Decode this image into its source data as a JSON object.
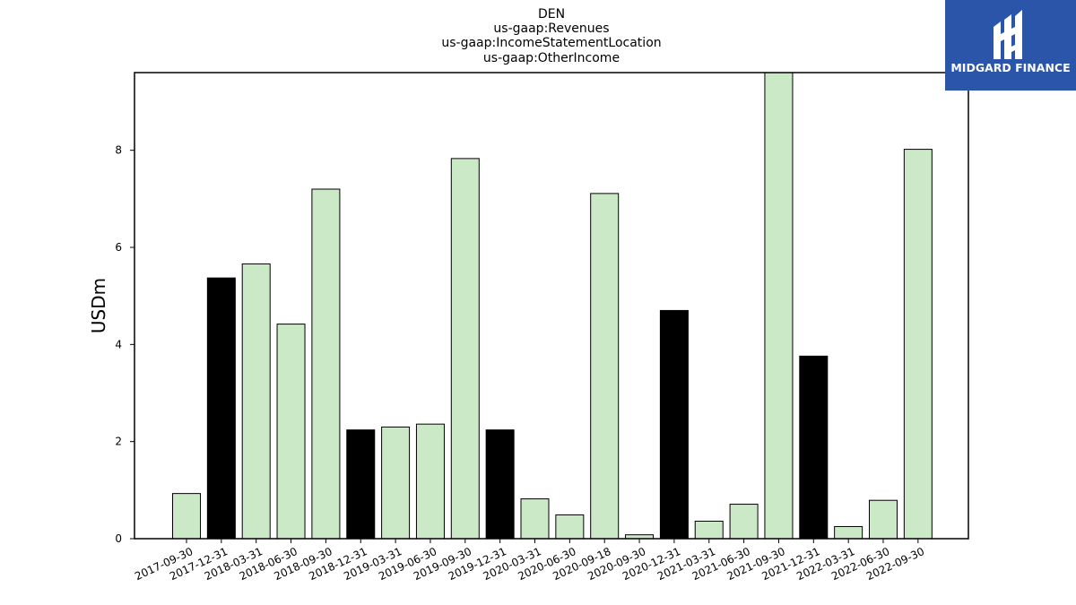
{
  "chart_data": {
    "type": "bar",
    "title_lines": [
      "DEN",
      "us-gaap:Revenues",
      "us-gaap:IncomeStatementLocation",
      "us-gaap:OtherIncome"
    ],
    "xlabel": "",
    "ylabel": "USDm",
    "ylim": [
      0,
      9.6
    ],
    "yticks": [
      0,
      2,
      4,
      6,
      8
    ],
    "grid": false,
    "categories": [
      "2017-09-30",
      "2017-12-31",
      "2018-03-31",
      "2018-06-30",
      "2018-09-30",
      "2018-12-31",
      "2019-03-31",
      "2019-06-30",
      "2019-09-30",
      "2019-12-31",
      "2020-03-31",
      "2020-06-30",
      "2020-09-18",
      "2020-09-30",
      "2020-12-31",
      "2021-03-31",
      "2021-06-30",
      "2021-09-30",
      "2021-12-31",
      "2022-03-31",
      "2022-06-30",
      "2022-09-30"
    ],
    "values": [
      0.93,
      5.37,
      5.66,
      4.42,
      7.2,
      2.24,
      2.3,
      2.36,
      7.83,
      2.24,
      0.82,
      0.49,
      7.11,
      0.08,
      4.7,
      0.36,
      0.71,
      9.62,
      3.76,
      0.25,
      0.79,
      8.02
    ],
    "bar_kind": [
      "quarter",
      "annual",
      "quarter",
      "quarter",
      "quarter",
      "annual",
      "quarter",
      "quarter",
      "quarter",
      "annual",
      "quarter",
      "quarter",
      "quarter",
      "quarter",
      "annual",
      "quarter",
      "quarter",
      "quarter",
      "annual",
      "quarter",
      "quarter",
      "quarter"
    ],
    "colors": {
      "quarter": "#cce9c7",
      "annual": "#000000",
      "edge": "#000000"
    }
  },
  "logo": {
    "text": "MIDGARD FINANCE",
    "background": "#2a55a8"
  }
}
